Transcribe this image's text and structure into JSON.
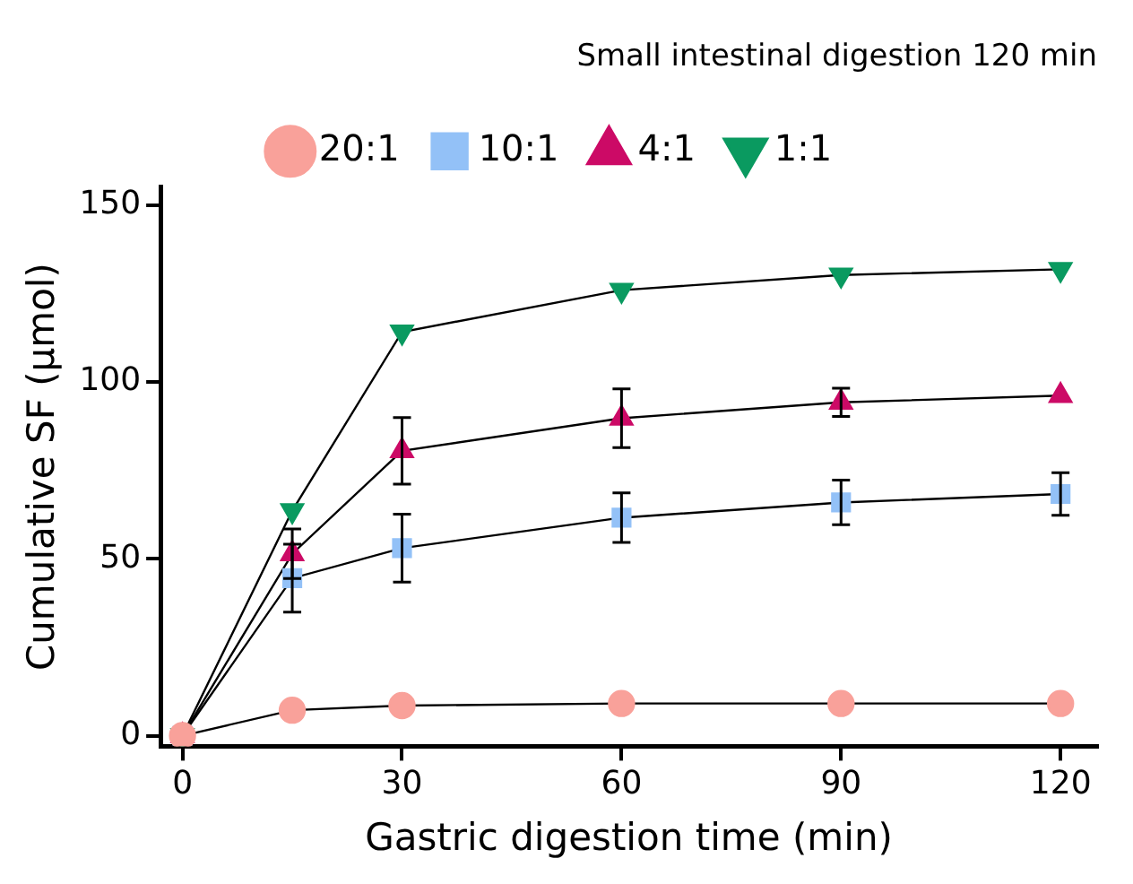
{
  "chart_data": {
    "type": "line",
    "title": "Small intestinal digestion 120 min",
    "xlabel": "Gastric digestion time (min)",
    "ylabel": "Cumulative SF (µmol)",
    "x": [
      0,
      15,
      30,
      60,
      90,
      120
    ],
    "xlim": [
      -3,
      125
    ],
    "xticks": [
      0,
      30,
      60,
      90,
      120
    ],
    "ylim": [
      -3,
      155
    ],
    "yticks": [
      0,
      50,
      100,
      150
    ],
    "grid": false,
    "legend": "top",
    "series": [
      {
        "name": "20:1",
        "color": "#f9a19a",
        "marker": "circle",
        "values": [
          0,
          7.2,
          8.5,
          9.1,
          9.1,
          9.1
        ]
      },
      {
        "name": "10:1",
        "color": "#93c1f7",
        "marker": "square",
        "values": [
          0,
          44.5,
          53,
          61.6,
          65.9,
          68.3
        ],
        "errors": [
          null,
          9.6,
          9.6,
          7,
          6.3,
          6
        ]
      },
      {
        "name": "4:1",
        "color": "#cc0a66",
        "marker": "triangle",
        "values": [
          0,
          51.4,
          80.5,
          89.7,
          94.2,
          96.1
        ],
        "errors": [
          null,
          7,
          9.4,
          8.3,
          4,
          null
        ]
      },
      {
        "name": "1:1",
        "color": "#0a9a60",
        "marker": "triangle-down",
        "values": [
          0,
          63.6,
          114.1,
          125.9,
          130.2,
          131.8
        ]
      }
    ]
  }
}
